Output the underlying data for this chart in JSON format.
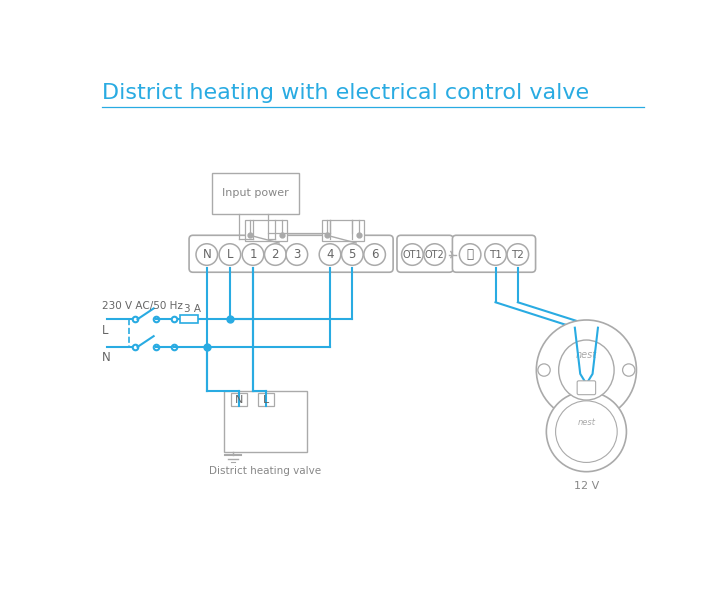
{
  "title": "District heating with electrical control valve",
  "title_color": "#29abe2",
  "title_fontsize": 16,
  "bg_color": "#ffffff",
  "line_color": "#29abe2",
  "border_color": "#aaaaaa",
  "text_color": "#888888",
  "dark_text": "#666666",
  "nest_label": "12 V",
  "valve_label": "District heating valve",
  "input_power_label": "Input power",
  "left_label": "230 V AC/50 Hz",
  "fuse_label": "3 A",
  "L_label": "L",
  "N_label": "N"
}
